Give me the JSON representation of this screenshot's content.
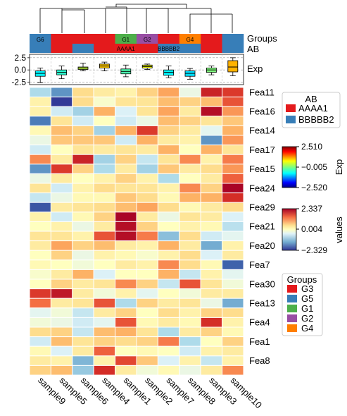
{
  "chart_data": {
    "type": "heatmap",
    "samples": [
      "sample9",
      "sample5",
      "sample6",
      "sample4",
      "sample1",
      "sample2",
      "sample7",
      "sample8",
      "sample3",
      "sample10"
    ],
    "features": [
      "Fea11",
      "Fea16",
      "Fea14",
      "Fea17",
      "Fea15",
      "Fea24",
      "Fea29",
      "Fea21",
      "Fea20",
      "Fea7",
      "Fea30",
      "Fea13",
      "Fea4",
      "Fea1",
      "Fea8"
    ],
    "feature_labels": [
      "Fea11",
      "Fea16",
      "Fea14",
      "Fea17",
      "Fea15",
      "Fea24",
      "Fea29",
      "Fea21",
      "Fea20",
      "Fea7",
      "Fea30",
      "Fea13",
      "Fea4",
      "Fea1",
      "Fea8"
    ],
    "values": [
      [
        -0.9,
        -1.6,
        0.5,
        0.3,
        0.2,
        0.6,
        1.0,
        -0.3,
        2.0,
        1.8
      ],
      [
        0.2,
        -2.3,
        0.5,
        -0.1,
        0.4,
        0.4,
        0.8,
        0.6,
        0.8,
        1.6
      ],
      [
        0.2,
        -0.6,
        -1.0,
        0.9,
        -0.5,
        0.4,
        1.0,
        0.3,
        2.2,
        1.1
      ],
      [
        -1.8,
        0.4,
        -0.6,
        0.0,
        -0.6,
        -0.3,
        0.8,
        0.6,
        0.4,
        0.7
      ],
      [
        0.1,
        0.8,
        0.6,
        -1.0,
        0.9,
        1.8,
        0.6,
        0.3,
        -0.4,
        0.9
      ],
      [
        -0.3,
        0.7,
        0.7,
        0.7,
        -0.6,
        0.9,
        0.3,
        0.2,
        -1.6,
        1.1
      ],
      [
        -0.6,
        0.0,
        0.4,
        0.3,
        0.4,
        0.3,
        0.9,
        0.0,
        0.9,
        0.4
      ],
      [
        1.2,
        0.3,
        2.0,
        -1.0,
        0.6,
        -0.7,
        0.4,
        1.2,
        0.2,
        1.3
      ],
      [
        -1.6,
        1.8,
        0.6,
        -0.9,
        0.3,
        -1.0,
        0.7,
        0.3,
        0.5,
        1.1
      ],
      [
        -0.3,
        0.3,
        0.0,
        0.2,
        0.6,
        0.2,
        -0.9,
        0.0,
        0.3,
        1.5
      ],
      [
        0.4,
        -0.6,
        0.2,
        0.5,
        0.4,
        0.4,
        0.2,
        1.2,
        0.6,
        2.3
      ],
      [
        -0.7,
        -0.3,
        0.1,
        0.1,
        0.7,
        0.5,
        0.1,
        0.9,
        0.9,
        1.9
      ],
      [
        -2.1,
        0.3,
        0.4,
        0.5,
        0.8,
        1.0,
        0.5,
        0.1,
        0.3,
        0.5
      ],
      [
        0.2,
        -0.6,
        0.1,
        0.6,
        2.3,
        0.3,
        -0.3,
        0.4,
        0.3,
        -0.5
      ],
      [
        0.0,
        0.2,
        -0.3,
        0.3,
        2.2,
        0.6,
        0.0,
        0.2,
        0.1,
        -0.8
      ],
      [
        0.4,
        0.4,
        0.2,
        1.6,
        2.2,
        1.3,
        -1.2,
        0.5,
        -0.6,
        -0.4
      ],
      [
        0.3,
        1.0,
        0.6,
        0.8,
        0.3,
        0.2,
        0.9,
        0.3,
        -1.4,
        0.2
      ],
      [
        0.0,
        0.6,
        -0.3,
        0.2,
        0.1,
        -0.1,
        0.2,
        0.5,
        -0.5,
        0.3
      ],
      [
        0.1,
        0.0,
        -0.2,
        0.0,
        0.3,
        0.2,
        1.2,
        0.5,
        0.1,
        -2.0
      ],
      [
        -0.1,
        0.3,
        0.9,
        -0.5,
        0.0,
        0.0,
        0.9,
        -0.7,
        0.2,
        -0.4
      ],
      [
        0.0,
        0.6,
        0.3,
        0.4,
        1.2,
        0.6,
        -0.7,
        1.6,
        0.4,
        -0.2
      ],
      [
        1.8,
        2.1,
        0.3,
        -0.2,
        0.2,
        -0.4,
        0.0,
        -0.2,
        0.3,
        0.3
      ],
      [
        1.4,
        0.3,
        0.4,
        1.6,
        -0.9,
        0.6,
        0.3,
        0.4,
        -0.3,
        -1.4
      ],
      [
        -0.4,
        -0.2,
        -0.7,
        0.3,
        0.6,
        0.0,
        0.5,
        0.2,
        0.6,
        0.5
      ],
      [
        -0.2,
        -0.3,
        -0.6,
        -0.4,
        1.6,
        0.1,
        0.3,
        0.1,
        1.9,
        0.2
      ],
      [
        0.5,
        0.6,
        -0.7,
        0.8,
        0.9,
        0.4,
        -0.9,
        0.3,
        0.6,
        0.1
      ],
      [
        -0.6,
        0.8,
        0.4,
        0.6,
        0.5,
        0.6,
        1.3,
        -0.9,
        0.0,
        0.6
      ],
      [
        0.1,
        -0.5,
        0.3,
        1.5,
        0.0,
        0.1,
        0.0,
        -0.6,
        0.2,
        0.3
      ],
      [
        0.3,
        0.2,
        -1.3,
        0.2,
        1.7,
        0.7,
        -0.5,
        0.2,
        -0.7,
        0.2
      ],
      [
        0.6,
        0.8,
        -1.1,
        1.9,
        0.3,
        -0.2,
        0.1,
        -0.3,
        0.3,
        1.2
      ]
    ],
    "row_label_every": 2,
    "groups": {
      "title": "Groups",
      "entries": [
        {
          "name": "G3",
          "color": "#e41a1c"
        },
        {
          "name": "G5",
          "color": "#377eb8"
        },
        {
          "name": "G1",
          "color": "#4daf4a"
        },
        {
          "name": "G2",
          "color": "#984ea3"
        },
        {
          "name": "G4",
          "color": "#ff7f00"
        }
      ],
      "track_label": "Groups",
      "assignment": [
        "G6",
        "G3",
        "G3",
        "G3",
        "G1",
        "G2",
        "G3",
        "G4",
        "G3",
        "G5"
      ],
      "shown_labels": [
        "G6",
        "G3",
        "",
        "",
        "G1",
        "G2",
        "",
        "G4",
        "",
        ""
      ],
      "g6_color": "#377eb8"
    },
    "ab": {
      "title": "AB",
      "entries": [
        {
          "name": "AAAA1",
          "color": "#e41a1c"
        },
        {
          "name": "BBBBB2",
          "color": "#377eb8"
        }
      ],
      "track_label": "AB",
      "assignment": [
        "BBBBB2",
        "AAAA1",
        "BBBBB2",
        "AAAA1",
        "AAAA1",
        "AAAA1",
        "BBBBB2",
        "BBBBB2",
        "AAAA1",
        "BBBBB2"
      ],
      "shown_labels": [
        "",
        "",
        "",
        "",
        "AAAA1",
        "",
        "BBBBB2",
        "",
        "",
        ""
      ]
    },
    "exp": {
      "track_label": "Exp",
      "yticks": [
        "2.5",
        "0.0",
        "-2.5"
      ],
      "ytick_values": [
        2.5,
        0.0,
        -2.5
      ],
      "ylim": [
        -3.0,
        3.2
      ],
      "boxes": [
        {
          "q1": -1.3,
          "median": -0.7,
          "q3": -0.2,
          "lo": -2.6,
          "hi": 0.4,
          "value": -0.8
        },
        {
          "q1": -1.0,
          "median": -0.5,
          "q3": 0.0,
          "lo": -1.8,
          "hi": 0.8,
          "value": -0.5
        },
        {
          "q1": 0.1,
          "median": 0.4,
          "q3": 0.6,
          "lo": -0.2,
          "hi": 1.4,
          "value": 0.4
        },
        {
          "q1": 0.4,
          "median": 0.8,
          "q3": 1.2,
          "lo": -0.2,
          "hi": 1.6,
          "value": 1.0
        },
        {
          "q1": -0.8,
          "median": -0.3,
          "q3": 0.2,
          "lo": -1.4,
          "hi": 1.0,
          "value": -0.3
        },
        {
          "q1": 0.4,
          "median": 0.7,
          "q3": 1.0,
          "lo": 0.1,
          "hi": 1.2,
          "value": 0.7
        },
        {
          "q1": -1.1,
          "median": -0.5,
          "q3": 0.0,
          "lo": -1.6,
          "hi": 0.8,
          "value": -0.8
        },
        {
          "q1": -1.3,
          "median": -0.7,
          "q3": -0.2,
          "lo": -1.9,
          "hi": 0.3,
          "value": -0.9
        },
        {
          "q1": -0.5,
          "median": 0.0,
          "q3": 0.4,
          "lo": -1.0,
          "hi": 0.8,
          "value": 0.0
        },
        {
          "q1": -0.4,
          "median": 0.6,
          "q3": 1.9,
          "lo": -1.2,
          "hi": 2.5,
          "value": 1.1
        }
      ]
    },
    "colorbar_exp": {
      "title": "Exp",
      "ticks": [
        "2.510",
        "−0.005",
        "−2.520"
      ],
      "min": -2.52,
      "max": 2.51,
      "cmap": "jet"
    },
    "colorbar_values": {
      "title": "values",
      "ticks": [
        "2.337",
        "0.004",
        "−2.329"
      ],
      "min": -2.329,
      "max": 2.337,
      "cmap": "RdYlBu_r"
    }
  }
}
